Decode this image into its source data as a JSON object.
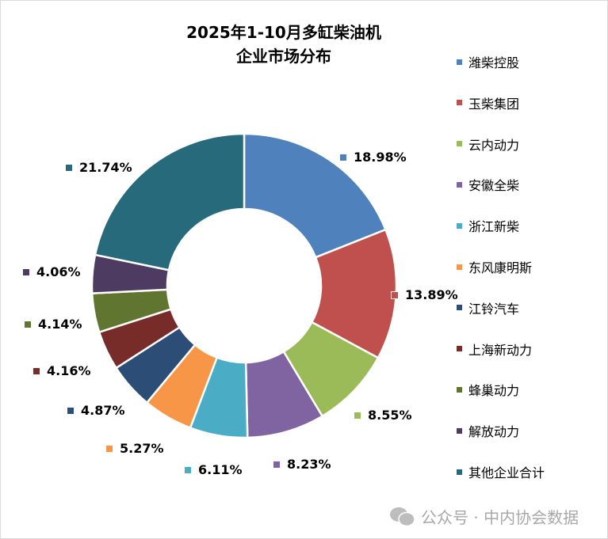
{
  "chart_data": {
    "type": "pie",
    "donut": true,
    "title": [
      "2025年1-10月多缸柴油机",
      "企业市场分布"
    ],
    "unit": "%",
    "legend_position": "right",
    "slices": [
      {
        "name": "潍柴控股",
        "value": 18.98,
        "label": "18.98%",
        "color": "#4F81BD"
      },
      {
        "name": "玉柴集团",
        "value": 13.89,
        "label": "13.89%",
        "color": "#C0504D"
      },
      {
        "name": "云内动力",
        "value": 8.55,
        "label": "8.55%",
        "color": "#9BBB59"
      },
      {
        "name": "安徽全柴",
        "value": 8.23,
        "label": "8.23%",
        "color": "#8064A2"
      },
      {
        "name": "浙江新柴",
        "value": 6.11,
        "label": "6.11%",
        "color": "#4BACC6"
      },
      {
        "name": "东风康明斯",
        "value": 5.27,
        "label": "5.27%",
        "color": "#F79646"
      },
      {
        "name": "江铃汽车",
        "value": 4.87,
        "label": "4.87%",
        "color": "#2C4D75"
      },
      {
        "name": "上海新动力",
        "value": 4.16,
        "label": "4.16%",
        "color": "#772C2A"
      },
      {
        "name": "蜂巢动力",
        "value": 4.14,
        "label": "4.14%",
        "color": "#5F7530"
      },
      {
        "name": "解放动力",
        "value": 4.06,
        "label": "4.06%",
        "color": "#4D3B62"
      },
      {
        "name": "其他企业合计",
        "value": 21.74,
        "label": "21.74%",
        "color": "#276A7C"
      }
    ]
  },
  "watermark": {
    "text": "公众号 · 中内协会数据",
    "icon": "wechat-icon"
  }
}
